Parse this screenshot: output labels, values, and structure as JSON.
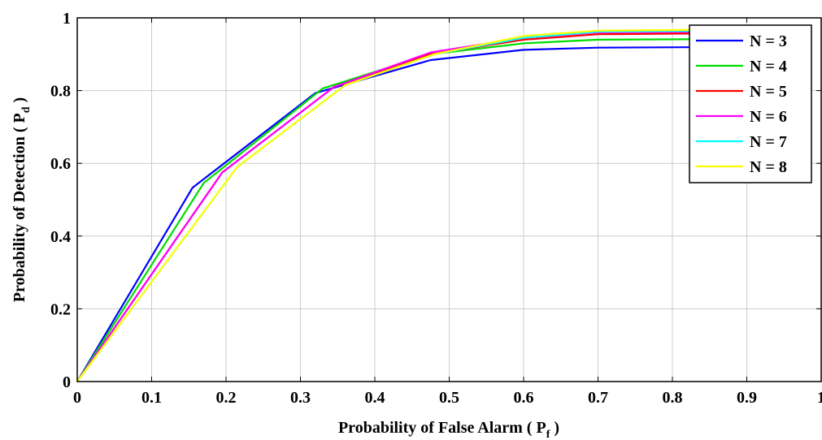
{
  "chart_data": {
    "type": "line",
    "xlabel_main": "Probability of False Alarm ( P",
    "xlabel_sub": "f",
    "xlabel_close": " )",
    "ylabel_main": "Probability of Detection ( P",
    "ylabel_sub": "d",
    "ylabel_close": " )",
    "xlim": [
      0,
      1
    ],
    "ylim": [
      0,
      1
    ],
    "x_ticks": [
      "0",
      "0.1",
      "0.2",
      "0.3",
      "0.4",
      "0.5",
      "0.6",
      "0.7",
      "0.8",
      "0.9",
      "1"
    ],
    "y_ticks": [
      "0",
      "0.2",
      "0.4",
      "0.6",
      "0.8",
      "1"
    ],
    "grid": true,
    "legend_position": "top-right",
    "series": [
      {
        "name": "N = 3",
        "color": "#0000ff",
        "x": [
          0,
          0.155,
          0.32,
          0.475,
          0.6,
          0.7,
          0.9
        ],
        "y": [
          0,
          0.533,
          0.793,
          0.884,
          0.912,
          0.918,
          0.92
        ]
      },
      {
        "name": "N = 4",
        "color": "#00dd00",
        "x": [
          0,
          0.17,
          0.33,
          0.475,
          0.6,
          0.7,
          0.9
        ],
        "y": [
          0,
          0.546,
          0.806,
          0.9,
          0.93,
          0.94,
          0.942
        ]
      },
      {
        "name": "N = 5",
        "color": "#ff0000",
        "x": [
          0,
          0.195,
          0.345,
          0.475,
          0.6,
          0.7,
          0.9
        ],
        "y": [
          0,
          0.575,
          0.81,
          0.9,
          0.94,
          0.955,
          0.958
        ]
      },
      {
        "name": "N = 6",
        "color": "#ff00ff",
        "x": [
          0,
          0.195,
          0.345,
          0.475,
          0.6,
          0.7,
          0.9
        ],
        "y": [
          0,
          0.575,
          0.81,
          0.905,
          0.945,
          0.96,
          0.962
        ]
      },
      {
        "name": "N = 7",
        "color": "#00ffff",
        "x": [
          0,
          0.215,
          0.36,
          0.48,
          0.6,
          0.7,
          0.9
        ],
        "y": [
          0,
          0.59,
          0.815,
          0.9,
          0.945,
          0.962,
          0.965
        ]
      },
      {
        "name": "N = 8",
        "color": "#ffff00",
        "x": [
          0,
          0.215,
          0.36,
          0.48,
          0.6,
          0.7,
          0.9
        ],
        "y": [
          0,
          0.59,
          0.815,
          0.9,
          0.95,
          0.965,
          0.968
        ]
      }
    ]
  }
}
